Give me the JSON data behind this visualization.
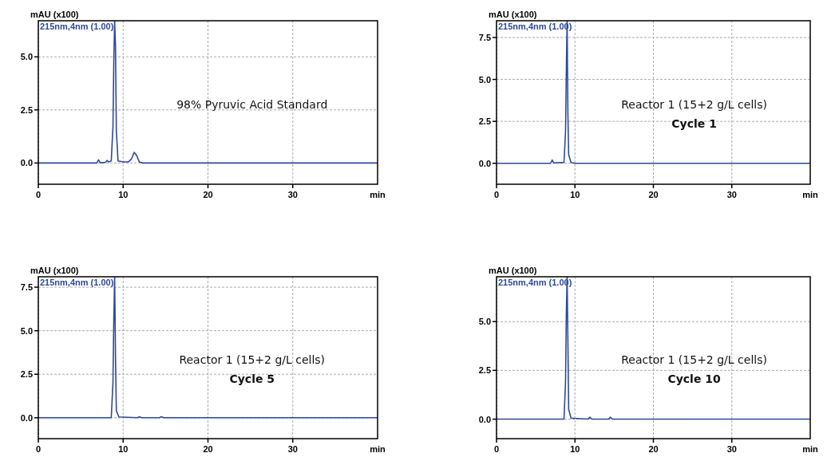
{
  "chart_data": [
    {
      "type": "line",
      "ylabel": "mAU (x100)",
      "xlabel": "min",
      "xlim": [
        0,
        40
      ],
      "xticks": [
        0,
        10,
        20,
        30
      ],
      "ylim": [
        -1,
        6.7
      ],
      "yticks": [
        {
          "value": 0,
          "label": "0.0"
        },
        {
          "value": 2.5,
          "label": "2.5"
        },
        {
          "value": 5,
          "label": "5.0"
        }
      ],
      "grid": true,
      "legend": "top left",
      "marker": "none",
      "line_style": "solid",
      "annotations": [
        "98% Pyruvic Acid Standard"
      ],
      "series": [
        {
          "name": "215nm,4nm (1.00)",
          "color": "#2e4a9e",
          "x": [
            0,
            6.9,
            7.1,
            7.3,
            7.9,
            8.1,
            8.3,
            8.6,
            8.8,
            8.9,
            9.0,
            9.1,
            9.2,
            9.4,
            10,
            10.6,
            11.0,
            11.3,
            11.6,
            11.9,
            12.3,
            40
          ],
          "values": [
            0,
            0,
            0.15,
            0.02,
            0.03,
            0.12,
            0.05,
            0.1,
            1.7,
            4.8,
            6.7,
            5.5,
            1.5,
            0.1,
            0.05,
            0.05,
            0.2,
            0.5,
            0.35,
            0.05,
            0,
            0
          ]
        }
      ]
    },
    {
      "type": "line",
      "ylabel": "mAU (x100)",
      "xlabel": "min",
      "xlim": [
        0,
        40
      ],
      "xticks": [
        0,
        10,
        20,
        30
      ],
      "ylim": [
        -1.25,
        8.5
      ],
      "yticks": [
        {
          "value": 0,
          "label": "0.0"
        },
        {
          "value": 2.5,
          "label": "2.5"
        },
        {
          "value": 5,
          "label": "5.0"
        },
        {
          "value": 7.5,
          "label": "7.5"
        }
      ],
      "grid": true,
      "legend": "top left",
      "marker": "none",
      "line_style": "solid",
      "annotations": [
        "Reactor 1 (15+2 g/L cells)",
        "Cycle 1"
      ],
      "series": [
        {
          "name": "215nm,4nm (1.00)",
          "color": "#2e4a9e",
          "x": [
            0,
            6.9,
            7.1,
            7.3,
            8.6,
            8.8,
            8.9,
            9.0,
            9.1,
            9.2,
            9.5,
            10,
            40
          ],
          "values": [
            0,
            0,
            0.2,
            0.02,
            0.05,
            1.9,
            5.5,
            8.5,
            3.0,
            0.5,
            0.05,
            0,
            0
          ]
        }
      ]
    },
    {
      "type": "line",
      "ylabel": "mAU (x100)",
      "xlabel": "min",
      "xlim": [
        0,
        40
      ],
      "xticks": [
        0,
        10,
        20,
        30
      ],
      "ylim": [
        -1.2,
        8.1
      ],
      "yticks": [
        {
          "value": 0,
          "label": "0.0"
        },
        {
          "value": 2.5,
          "label": "2.5"
        },
        {
          "value": 5,
          "label": "5.0"
        },
        {
          "value": 7.5,
          "label": "7.5"
        }
      ],
      "grid": true,
      "legend": "top left",
      "marker": "none",
      "line_style": "solid",
      "annotations": [
        "Reactor 1 (15+2 g/L cells)",
        "Cycle 5"
      ],
      "series": [
        {
          "name": "215nm,4nm (1.00)",
          "color": "#2e4a9e",
          "x": [
            0,
            8.6,
            8.8,
            8.9,
            9.0,
            9.1,
            9.2,
            9.5,
            11.7,
            11.9,
            12.2,
            14.3,
            14.5,
            14.8,
            40
          ],
          "values": [
            0,
            0,
            2.0,
            5.7,
            8.1,
            3.5,
            0.4,
            0.05,
            0,
            0.06,
            0,
            0,
            0.06,
            0,
            0
          ]
        }
      ]
    },
    {
      "type": "line",
      "ylabel": "mAU (x100)",
      "xlabel": "min",
      "xlim": [
        0,
        40
      ],
      "xticks": [
        0,
        10,
        20,
        30
      ],
      "ylim": [
        -1,
        7.3
      ],
      "yticks": [
        {
          "value": 0,
          "label": "0.0"
        },
        {
          "value": 2.5,
          "label": "2.5"
        },
        {
          "value": 5,
          "label": "5.0"
        }
      ],
      "grid": true,
      "legend": "top left",
      "marker": "none",
      "line_style": "solid",
      "annotations": [
        "Reactor 1 (15+2 g/L cells)",
        "Cycle 10"
      ],
      "series": [
        {
          "name": "215nm,4nm (1.00)",
          "color": "#2e4a9e",
          "x": [
            0,
            8.6,
            8.8,
            8.9,
            9.0,
            9.1,
            9.2,
            9.5,
            11.7,
            11.9,
            12.2,
            14.3,
            14.5,
            14.8,
            40
          ],
          "values": [
            0,
            0,
            1.9,
            5.4,
            7.3,
            4.0,
            0.5,
            0.05,
            0,
            0.1,
            0,
            0,
            0.1,
            0,
            0
          ]
        }
      ]
    }
  ]
}
